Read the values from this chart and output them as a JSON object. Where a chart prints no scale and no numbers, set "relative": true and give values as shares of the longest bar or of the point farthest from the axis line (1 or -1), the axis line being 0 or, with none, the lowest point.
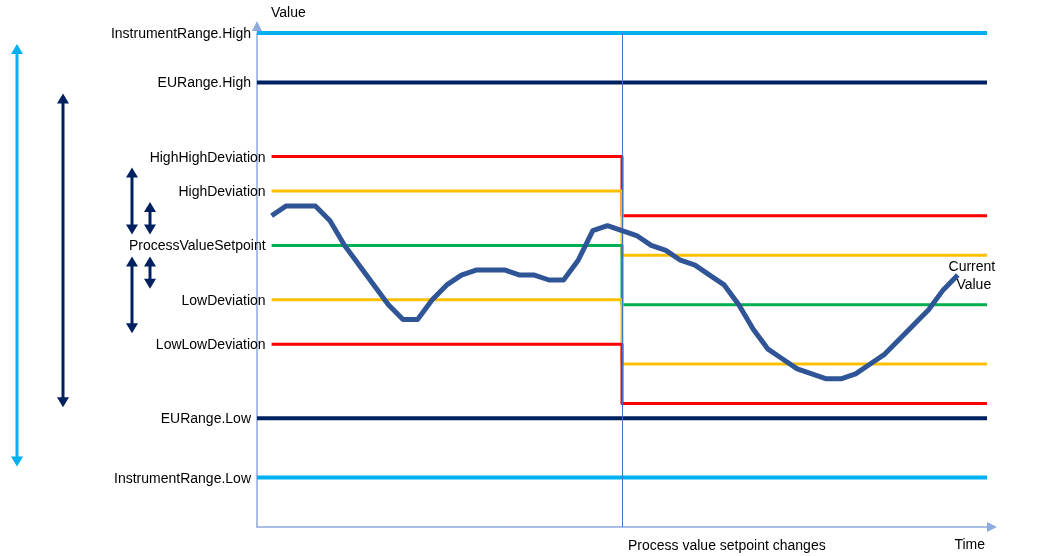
{
  "chart_data": {
    "type": "line",
    "relative": true,
    "xlabel": "Time",
    "ylabel": "Value",
    "legend": false,
    "grid": false,
    "marker": "none",
    "categories": [
      null,
      null,
      null,
      null,
      null,
      null,
      null,
      null,
      null,
      null,
      null,
      null,
      null,
      null,
      null,
      null,
      null,
      null,
      null,
      null,
      null,
      null,
      null,
      null,
      null,
      null,
      null,
      null,
      null,
      null,
      null,
      null,
      null,
      null,
      null,
      null,
      null,
      null,
      null,
      null,
      null,
      null,
      null,
      null,
      null,
      null,
      null,
      null,
      null,
      null,
      null
    ],
    "ref_lines": [
      {
        "axis": "x",
        "label": "Process value setpoint changes",
        "color": "#4472c4"
      }
    ],
    "series": [
      {
        "name": "InstrumentRange.High",
        "color": "#00b0f0",
        "values": [
          1,
          1,
          1,
          1,
          1,
          1,
          1,
          1,
          1,
          1,
          1,
          1,
          1,
          1,
          1,
          1,
          1,
          1,
          1,
          1,
          1,
          1,
          1,
          1,
          1,
          1,
          1,
          1,
          1,
          1,
          1,
          1,
          1,
          1,
          1,
          1,
          1,
          1,
          1,
          1,
          1,
          1,
          1,
          1,
          1,
          1,
          1,
          1,
          1,
          1,
          1
        ]
      },
      {
        "name": "EURange.High",
        "color": "#002060",
        "values": [
          0.9,
          0.9,
          0.9,
          0.9,
          0.9,
          0.9,
          0.9,
          0.9,
          0.9,
          0.9,
          0.9,
          0.9,
          0.9,
          0.9,
          0.9,
          0.9,
          0.9,
          0.9,
          0.9,
          0.9,
          0.9,
          0.9,
          0.9,
          0.9,
          0.9,
          0.9,
          0.9,
          0.9,
          0.9,
          0.9,
          0.9,
          0.9,
          0.9,
          0.9,
          0.9,
          0.9,
          0.9,
          0.9,
          0.9,
          0.9,
          0.9,
          0.9,
          0.9,
          0.9,
          0.9,
          0.9,
          0.9,
          0.9,
          0.9,
          0.9,
          0.9
        ]
      },
      {
        "name": "HighHighDeviation",
        "type": "step",
        "color": "#ff0000",
        "values": [
          null,
          0.75,
          0.75,
          0.75,
          0.75,
          0.75,
          0.75,
          0.75,
          0.75,
          0.75,
          0.75,
          0.75,
          0.75,
          0.75,
          0.75,
          0.75,
          0.75,
          0.75,
          0.75,
          0.75,
          0.75,
          0.75,
          0.75,
          0.75,
          0.75,
          0.63,
          0.63,
          0.63,
          0.63,
          0.63,
          0.63,
          0.63,
          0.63,
          0.63,
          0.63,
          0.63,
          0.63,
          0.63,
          0.63,
          0.63,
          0.63,
          0.63,
          0.63,
          0.63,
          0.63,
          0.63,
          0.63,
          0.63,
          0.63,
          0.63,
          0.63
        ]
      },
      {
        "name": "HighDeviation",
        "type": "step",
        "color": "#ffc000",
        "values": [
          null,
          0.68,
          0.68,
          0.68,
          0.68,
          0.68,
          0.68,
          0.68,
          0.68,
          0.68,
          0.68,
          0.68,
          0.68,
          0.68,
          0.68,
          0.68,
          0.68,
          0.68,
          0.68,
          0.68,
          0.68,
          0.68,
          0.68,
          0.68,
          0.68,
          0.55,
          0.55,
          0.55,
          0.55,
          0.55,
          0.55,
          0.55,
          0.55,
          0.55,
          0.55,
          0.55,
          0.55,
          0.55,
          0.55,
          0.55,
          0.55,
          0.55,
          0.55,
          0.55,
          0.55,
          0.55,
          0.55,
          0.55,
          0.55,
          0.55,
          0.55
        ]
      },
      {
        "name": "ProcessValueSetpoint",
        "type": "step",
        "color": "#00b050",
        "values": [
          null,
          0.57,
          0.57,
          0.57,
          0.57,
          0.57,
          0.57,
          0.57,
          0.57,
          0.57,
          0.57,
          0.57,
          0.57,
          0.57,
          0.57,
          0.57,
          0.57,
          0.57,
          0.57,
          0.57,
          0.57,
          0.57,
          0.57,
          0.57,
          0.57,
          0.45,
          0.45,
          0.45,
          0.45,
          0.45,
          0.45,
          0.45,
          0.45,
          0.45,
          0.45,
          0.45,
          0.45,
          0.45,
          0.45,
          0.45,
          0.45,
          0.45,
          0.45,
          0.45,
          0.45,
          0.45,
          0.45,
          0.45,
          0.45,
          0.45,
          0.45
        ]
      },
      {
        "name": "LowDeviation",
        "type": "step",
        "color": "#ffc000",
        "values": [
          null,
          0.46,
          0.46,
          0.46,
          0.46,
          0.46,
          0.46,
          0.46,
          0.46,
          0.46,
          0.46,
          0.46,
          0.46,
          0.46,
          0.46,
          0.46,
          0.46,
          0.46,
          0.46,
          0.46,
          0.46,
          0.46,
          0.46,
          0.46,
          0.46,
          0.33,
          0.33,
          0.33,
          0.33,
          0.33,
          0.33,
          0.33,
          0.33,
          0.33,
          0.33,
          0.33,
          0.33,
          0.33,
          0.33,
          0.33,
          0.33,
          0.33,
          0.33,
          0.33,
          0.33,
          0.33,
          0.33,
          0.33,
          0.33,
          0.33,
          0.33
        ]
      },
      {
        "name": "LowLowDeviation",
        "type": "step",
        "color": "#ff0000",
        "values": [
          null,
          0.37,
          0.37,
          0.37,
          0.37,
          0.37,
          0.37,
          0.37,
          0.37,
          0.37,
          0.37,
          0.37,
          0.37,
          0.37,
          0.37,
          0.37,
          0.37,
          0.37,
          0.37,
          0.37,
          0.37,
          0.37,
          0.37,
          0.37,
          0.37,
          0.25,
          0.25,
          0.25,
          0.25,
          0.25,
          0.25,
          0.25,
          0.25,
          0.25,
          0.25,
          0.25,
          0.25,
          0.25,
          0.25,
          0.25,
          0.25,
          0.25,
          0.25,
          0.25,
          0.25,
          0.25,
          0.25,
          0.25,
          0.25,
          0.25,
          0.25
        ]
      },
      {
        "name": "EURange.Low",
        "color": "#002060",
        "values": [
          0.22,
          0.22,
          0.22,
          0.22,
          0.22,
          0.22,
          0.22,
          0.22,
          0.22,
          0.22,
          0.22,
          0.22,
          0.22,
          0.22,
          0.22,
          0.22,
          0.22,
          0.22,
          0.22,
          0.22,
          0.22,
          0.22,
          0.22,
          0.22,
          0.22,
          0.22,
          0.22,
          0.22,
          0.22,
          0.22,
          0.22,
          0.22,
          0.22,
          0.22,
          0.22,
          0.22,
          0.22,
          0.22,
          0.22,
          0.22,
          0.22,
          0.22,
          0.22,
          0.22,
          0.22,
          0.22,
          0.22,
          0.22,
          0.22,
          0.22,
          0.22
        ]
      },
      {
        "name": "InstrumentRange.Low",
        "color": "#00b0f0",
        "values": [
          0.1,
          0.1,
          0.1,
          0.1,
          0.1,
          0.1,
          0.1,
          0.1,
          0.1,
          0.1,
          0.1,
          0.1,
          0.1,
          0.1,
          0.1,
          0.1,
          0.1,
          0.1,
          0.1,
          0.1,
          0.1,
          0.1,
          0.1,
          0.1,
          0.1,
          0.1,
          0.1,
          0.1,
          0.1,
          0.1,
          0.1,
          0.1,
          0.1,
          0.1,
          0.1,
          0.1,
          0.1,
          0.1,
          0.1,
          0.1,
          0.1,
          0.1,
          0.1,
          0.1,
          0.1,
          0.1,
          0.1,
          0.1,
          0.1,
          0.1,
          0.1
        ]
      },
      {
        "name": "Current Value",
        "color": "#2f5597",
        "values": [
          null,
          0.63,
          0.65,
          0.65,
          0.65,
          0.62,
          0.57,
          0.53,
          0.49,
          0.45,
          0.42,
          0.42,
          0.46,
          0.49,
          0.51,
          0.52,
          0.52,
          0.52,
          0.51,
          0.51,
          0.5,
          0.5,
          0.54,
          0.6,
          0.61,
          0.6,
          0.59,
          0.57,
          0.56,
          0.54,
          0.53,
          0.51,
          0.49,
          0.45,
          0.4,
          0.36,
          0.34,
          0.32,
          0.31,
          0.3,
          0.3,
          0.31,
          0.33,
          0.35,
          0.38,
          0.41,
          0.44,
          0.48,
          0.51,
          null,
          null
        ]
      }
    ]
  }
}
